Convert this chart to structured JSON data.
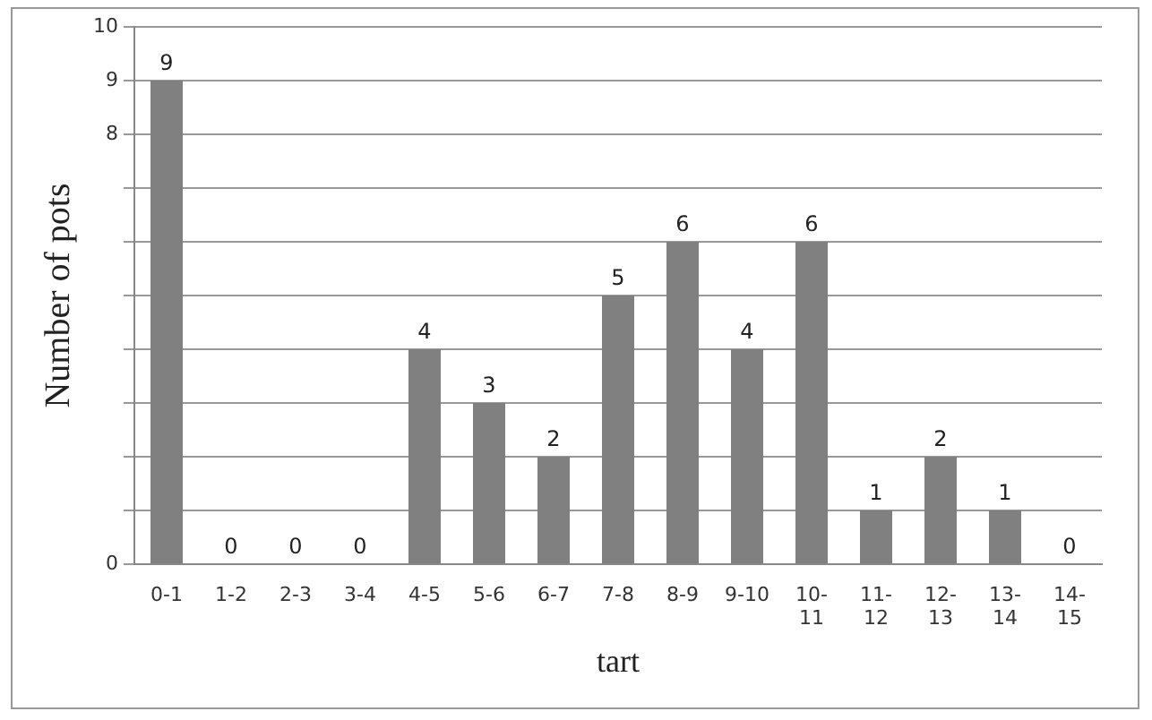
{
  "chart_data": {
    "type": "bar",
    "xlabel": "tart",
    "ylabel": "Number of pots",
    "categories": [
      "0-1",
      "1-2",
      "2-3",
      "3-4",
      "4-5",
      "5-6",
      "6-7",
      "7-8",
      "8-9",
      "9-10",
      "10-11",
      "11-12",
      "12-13",
      "13-14",
      "14-15"
    ],
    "values": [
      9,
      0,
      0,
      0,
      4,
      3,
      2,
      5,
      6,
      4,
      6,
      1,
      2,
      1,
      0
    ],
    "color": "#808080",
    "ylim": [
      0,
      10
    ],
    "yticks": [
      0,
      {
        "value": 1,
        "label": null
      },
      {
        "value": 2,
        "label": null
      },
      {
        "value": 3,
        "label": null
      },
      {
        "value": 4,
        "label": null
      },
      {
        "value": 5,
        "label": null
      },
      {
        "value": 6,
        "label": null
      },
      {
        "value": 7,
        "label": null
      },
      8,
      9,
      10
    ],
    "grid": "y",
    "data_labels": true,
    "legend": false
  }
}
